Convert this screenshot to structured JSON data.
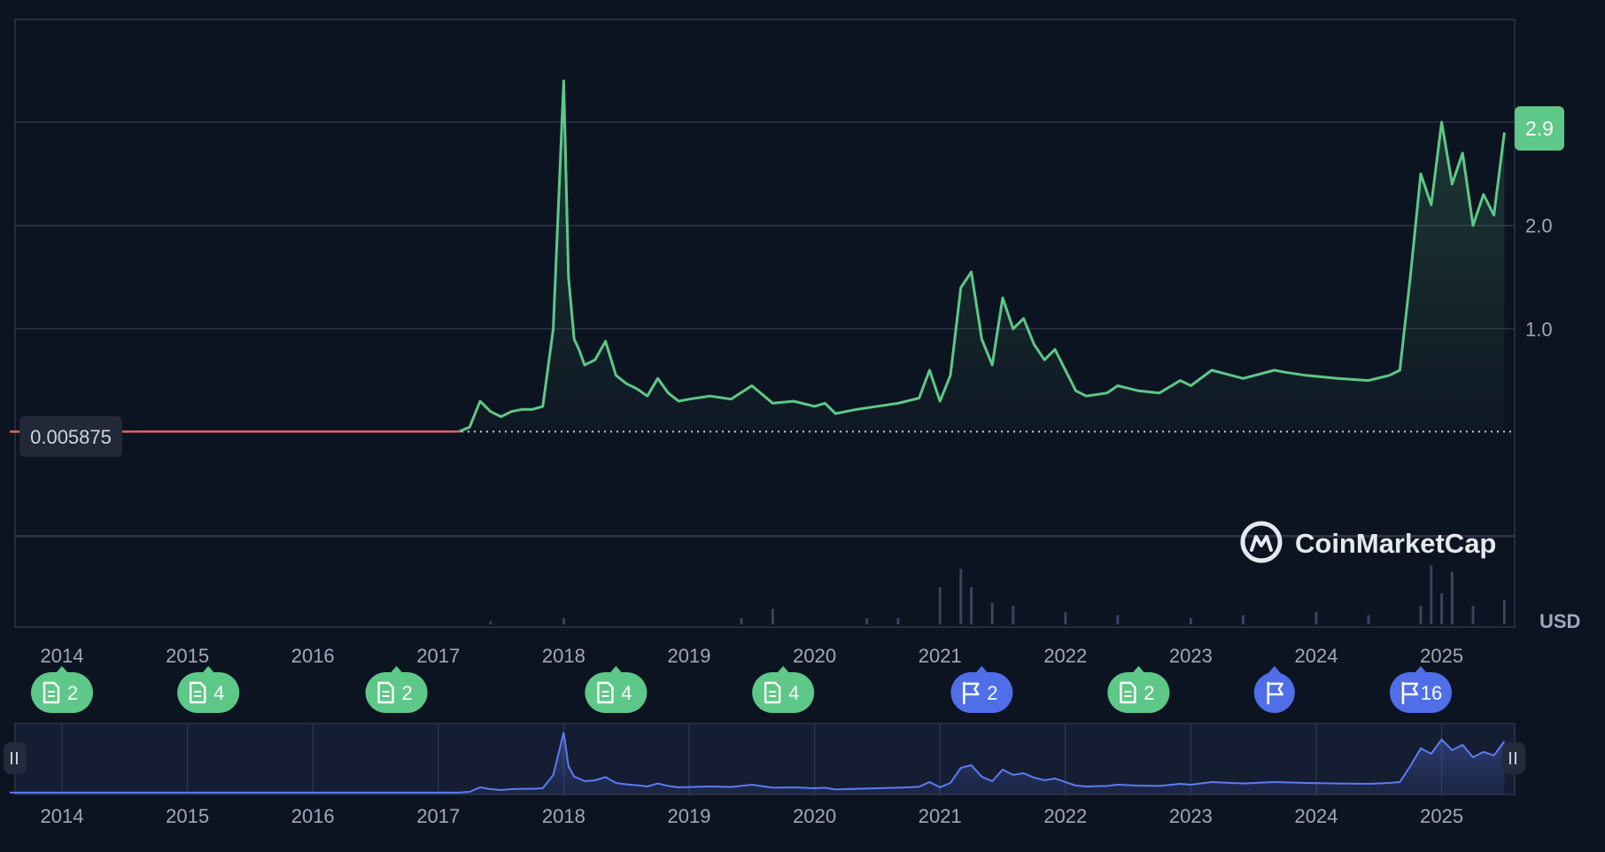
{
  "chart_data": {
    "type": "area",
    "x_tick_labels": [
      "2014",
      "2015",
      "2016",
      "2017",
      "2018",
      "2019",
      "2020",
      "2021",
      "2022",
      "2023",
      "2024",
      "2025"
    ],
    "y_tick_labels": [
      "1.0",
      "2.0"
    ],
    "ylim": [
      -1,
      3.9
    ],
    "currency_label": "USD",
    "current_price_label": "2.9",
    "reference_price_label": "0.005875",
    "reference_price": 0.005875,
    "brand": "CoinMarketCap",
    "grid": true,
    "series": [
      {
        "x": [
          "2013-08",
          "2014-09",
          "2015-06",
          "2016-06",
          "2017-03",
          "2017-04",
          "2017-05",
          "2017-06",
          "2017-07",
          "2017-08",
          "2017-09",
          "2017-10",
          "2017-11",
          "2017-12",
          "2018-01",
          "2018-01-15",
          "2018-02",
          "2018-02-15",
          "2018-03",
          "2018-04",
          "2018-05",
          "2018-06",
          "2018-07",
          "2018-08",
          "2018-09",
          "2018-10",
          "2018-11",
          "2018-12",
          "2019-01",
          "2019-03",
          "2019-05",
          "2019-07",
          "2019-09",
          "2019-11",
          "2020-01",
          "2020-02",
          "2020-03",
          "2020-05",
          "2020-07",
          "2020-09",
          "2020-11",
          "2020-12",
          "2021-01",
          "2021-02",
          "2021-03",
          "2021-04",
          "2021-05",
          "2021-06",
          "2021-07",
          "2021-08",
          "2021-09",
          "2021-10",
          "2021-11",
          "2021-12",
          "2022-02",
          "2022-03",
          "2022-05",
          "2022-06",
          "2022-08",
          "2022-10",
          "2022-12",
          "2023-01",
          "2023-03",
          "2023-06",
          "2023-09",
          "2023-10",
          "2023-12",
          "2024-03",
          "2024-06",
          "2024-08",
          "2024-09",
          "2024-10",
          "2024-11",
          "2024-12",
          "2025-01",
          "2025-02",
          "2025-03",
          "2025-04",
          "2025-05",
          "2025-06",
          "2025-07"
        ],
        "values": [
          0.005,
          0.006,
          0.006,
          0.006,
          0.006,
          0.05,
          0.3,
          0.2,
          0.15,
          0.2,
          0.22,
          0.22,
          0.25,
          1.0,
          3.4,
          1.5,
          0.9,
          0.8,
          0.65,
          0.7,
          0.88,
          0.55,
          0.47,
          0.42,
          0.35,
          0.52,
          0.38,
          0.3,
          0.32,
          0.35,
          0.32,
          0.45,
          0.28,
          0.3,
          0.25,
          0.28,
          0.18,
          0.22,
          0.25,
          0.28,
          0.33,
          0.6,
          0.3,
          0.55,
          1.4,
          1.55,
          0.9,
          0.65,
          1.3,
          1.0,
          1.1,
          0.85,
          0.7,
          0.8,
          0.4,
          0.35,
          0.38,
          0.45,
          0.4,
          0.38,
          0.5,
          0.45,
          0.6,
          0.52,
          0.6,
          0.58,
          0.55,
          0.52,
          0.5,
          0.55,
          0.6,
          1.5,
          2.5,
          2.2,
          3.0,
          2.4,
          2.7,
          2.0,
          2.3,
          2.1,
          2.9
        ]
      }
    ],
    "volume": {
      "x": [
        "2017-06",
        "2018-01",
        "2019-06",
        "2019-09",
        "2020-06",
        "2020-09",
        "2021-01",
        "2021-03",
        "2021-04",
        "2021-06",
        "2021-08",
        "2022-01",
        "2022-06",
        "2023-01",
        "2023-06",
        "2024-01",
        "2024-06",
        "2024-11",
        "2024-12",
        "2025-01",
        "2025-02",
        "2025-04",
        "2025-07"
      ],
      "values": [
        0.05,
        0.1,
        0.1,
        0.25,
        0.1,
        0.1,
        0.6,
        0.9,
        0.6,
        0.35,
        0.3,
        0.2,
        0.15,
        0.1,
        0.15,
        0.2,
        0.15,
        0.3,
        0.95,
        0.5,
        0.85,
        0.3,
        0.4
      ]
    },
    "navigator_tick_labels": [
      "2014",
      "2015",
      "2016",
      "2017",
      "2018",
      "2019",
      "2020",
      "2021",
      "2022",
      "2023",
      "2024",
      "2025"
    ],
    "event_markers": [
      {
        "kind": "doc",
        "count": "2",
        "date": "2014-01"
      },
      {
        "kind": "doc",
        "count": "4",
        "date": "2015-03"
      },
      {
        "kind": "doc",
        "count": "2",
        "date": "2016-09"
      },
      {
        "kind": "doc",
        "count": "4",
        "date": "2018-06"
      },
      {
        "kind": "doc",
        "count": "4",
        "date": "2019-10"
      },
      {
        "kind": "flag",
        "count": "2",
        "date": "2021-05"
      },
      {
        "kind": "doc",
        "count": "2",
        "date": "2022-08"
      },
      {
        "kind": "flag",
        "count": "",
        "date": "2023-09"
      },
      {
        "kind": "flag",
        "count": "16",
        "date": "2024-11"
      }
    ],
    "colors": {
      "background": "#0d1421",
      "line": "#5dc887",
      "pre_line": "#e2635c",
      "grid": "#2e3446",
      "tick_text": "#a1a7bb",
      "badge_doc": "#5dc887",
      "badge_flag": "#4f6ee8",
      "navigator_line": "#5b7cf0",
      "navigator_bg": "#151d33"
    }
  }
}
